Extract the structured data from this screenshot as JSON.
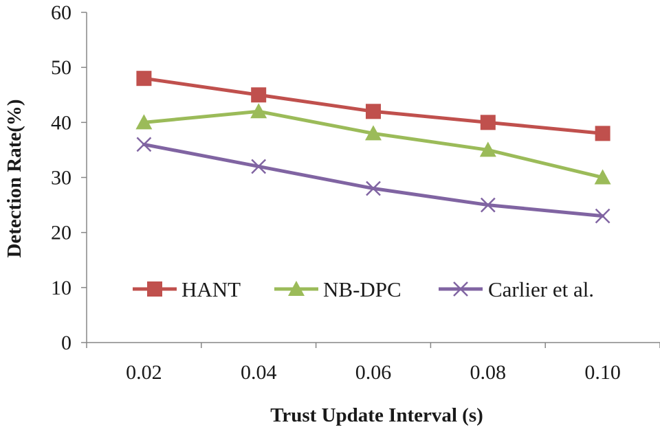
{
  "chart_data": {
    "type": "line",
    "title": "",
    "xlabel": "Trust Update Interval (s)",
    "ylabel": "Detection Rate(%)",
    "categories": [
      "0.02",
      "0.04",
      "0.06",
      "0.08",
      "0.10"
    ],
    "ylim": [
      0,
      60
    ],
    "yticks": [
      "0",
      "10",
      "20",
      "30",
      "40",
      "50",
      "60"
    ],
    "grid": false,
    "legend_position": "lower-inside",
    "series": [
      {
        "name": "HANT",
        "values": [
          48,
          45,
          42,
          40,
          38
        ],
        "color": "#c0504d",
        "marker": "square"
      },
      {
        "name": "NB-DPC",
        "values": [
          40,
          42,
          38,
          35,
          30
        ],
        "color": "#9bbb59",
        "marker": "triangle"
      },
      {
        "name": "Carlier et al.",
        "values": [
          36,
          32,
          28,
          25,
          23
        ],
        "color": "#8064a2",
        "marker": "x"
      }
    ]
  }
}
